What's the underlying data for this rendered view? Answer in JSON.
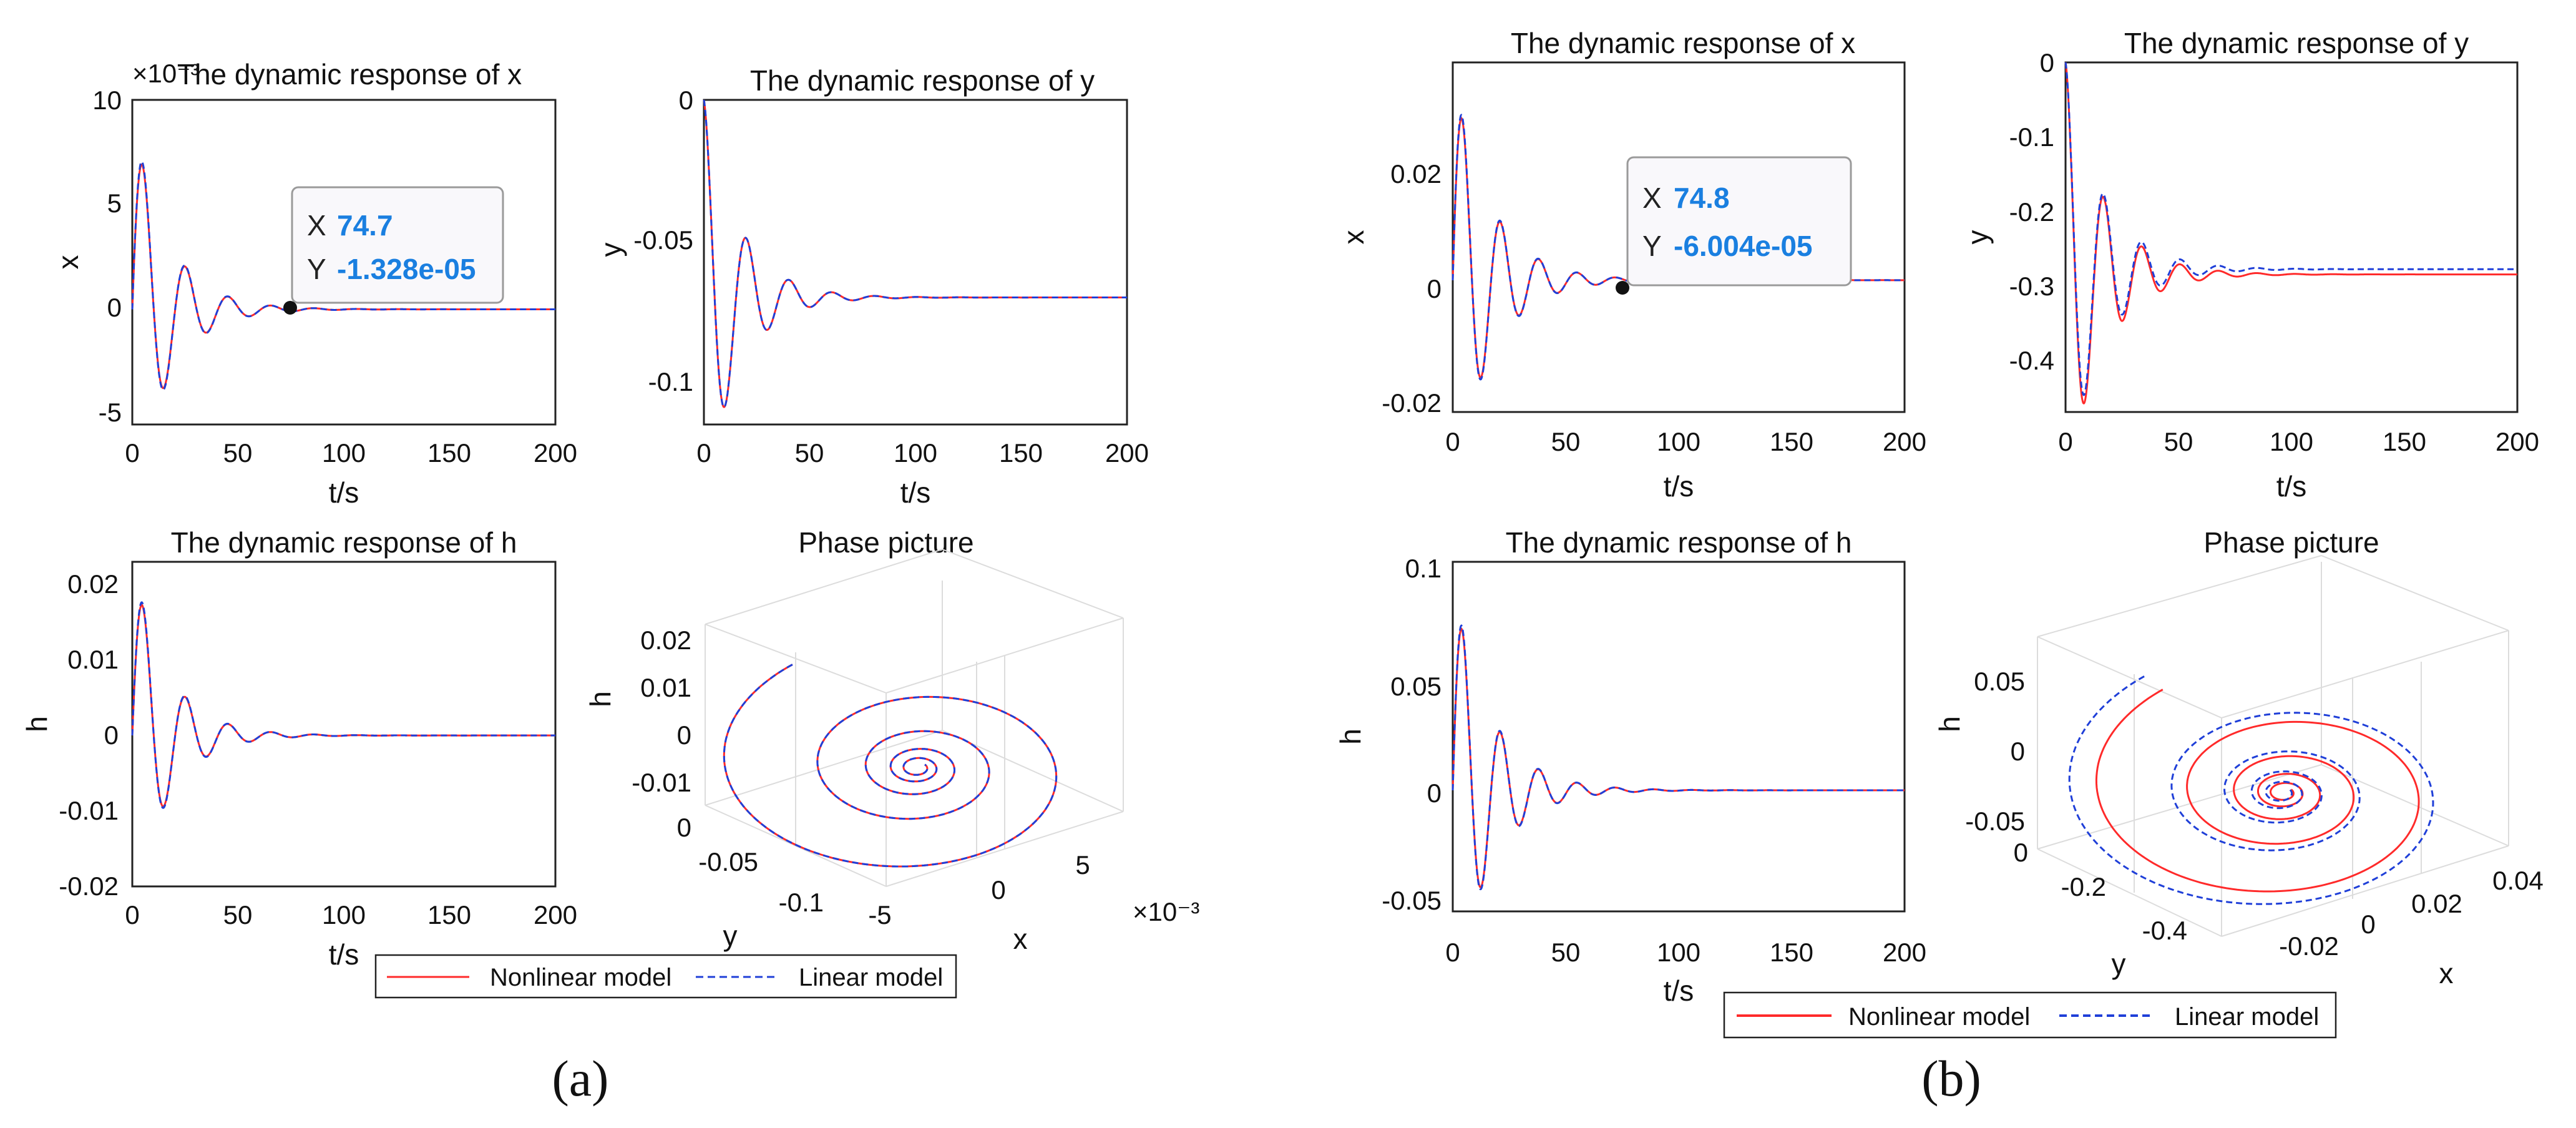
{
  "panel_labels": [
    "(a)",
    "(b)"
  ],
  "legend": {
    "entries": [
      "Nonlinear model",
      "Linear model"
    ]
  },
  "colors": {
    "nonlinear": "#ff2a2a",
    "linear": "#1f3fd8",
    "datatip_value": "#1a7fe0"
  },
  "chart_data": [
    {
      "id": "a1",
      "type": "line",
      "title": "The dynamic response of x",
      "xlabel": "t/s",
      "ylabel": "x",
      "exponent": "×10⁻³",
      "xlim": [
        0,
        200
      ],
      "ylim": [
        -5.5,
        10
      ],
      "xticks": [
        "0",
        "50",
        "100",
        "150",
        "200"
      ],
      "yticks": [
        "-5",
        "0",
        "5",
        "10"
      ],
      "response": {
        "amplitude": 9.2,
        "decay": 0.06,
        "omega": 0.31,
        "final": 0
      },
      "datatip": {
        "x_key": "X",
        "x": "74.7",
        "y_key": "Y",
        "y": "-1.328e-05"
      }
    },
    {
      "id": "a2",
      "type": "line",
      "title": "The dynamic response of y",
      "xlabel": "t/s",
      "ylabel": "y",
      "xlim": [
        0,
        200
      ],
      "ylim": [
        -0.115,
        0
      ],
      "xticks": [
        "0",
        "50",
        "100",
        "150",
        "200"
      ],
      "yticks": [
        "-0.1",
        "-0.05",
        "0"
      ],
      "response": {
        "amplitude": 0.07,
        "decay": 0.06,
        "omega": 0.31,
        "final": -0.07,
        "final_linear": -0.07
      }
    },
    {
      "id": "a3",
      "type": "line",
      "title": "The dynamic response of h",
      "xlabel": "t/s",
      "ylabel": "h",
      "xlim": [
        0,
        200
      ],
      "ylim": [
        -0.02,
        0.023
      ],
      "xticks": [
        "0",
        "50",
        "100",
        "150",
        "200"
      ],
      "yticks": [
        "-0.02",
        "-0.01",
        "0",
        "0.01",
        "0.02"
      ],
      "response": {
        "amplitude": 0.023,
        "decay": 0.06,
        "omega": 0.31,
        "final": 0
      }
    },
    {
      "id": "a4",
      "type": "line3d",
      "title": "Phase picture",
      "xlabel": "x",
      "ylabel": "y",
      "zlabel": "h",
      "exponent": "×10⁻³",
      "xticks": [
        "-5",
        "0",
        "5"
      ],
      "yticks": [
        "-0.1",
        "-0.05",
        "0"
      ],
      "zticks": [
        "-0.01",
        "0",
        "0.01",
        "0.02"
      ],
      "spiral": {
        "separation": 0.0
      }
    },
    {
      "id": "b1",
      "type": "line",
      "title": "The dynamic response of x",
      "xlabel": "t/s",
      "ylabel": "x",
      "xlim": [
        0,
        200
      ],
      "ylim": [
        -0.023,
        0.038
      ],
      "xticks": [
        "0",
        "50",
        "100",
        "150",
        "200"
      ],
      "yticks": [
        "-0.02",
        "0",
        "0.02"
      ],
      "response": {
        "amplitude": 0.036,
        "decay": 0.06,
        "omega": 0.37,
        "final": 0
      },
      "datatip": {
        "x_key": "X",
        "x": "74.8",
        "y_key": "Y",
        "y": "-6.004e-05"
      }
    },
    {
      "id": "b2",
      "type": "line",
      "title": "The dynamic response of y",
      "xlabel": "t/s",
      "ylabel": "y",
      "xlim": [
        0,
        200
      ],
      "ylim": [
        -0.47,
        0
      ],
      "xticks": [
        "0",
        "50",
        "100",
        "150",
        "200"
      ],
      "yticks": [
        "-0.4",
        "-0.3",
        "-0.2",
        "-0.1",
        "0"
      ],
      "response": {
        "amplitude": 0.28,
        "decay": 0.06,
        "omega": 0.37,
        "final": -0.285,
        "final_linear": -0.278
      }
    },
    {
      "id": "b3",
      "type": "line",
      "title": "The dynamic response of h",
      "xlabel": "t/s",
      "ylabel": "h",
      "xlim": [
        0,
        200
      ],
      "ylim": [
        -0.053,
        0.1
      ],
      "xticks": [
        "0",
        "50",
        "100",
        "150",
        "200"
      ],
      "yticks": [
        "-0.05",
        "0",
        "0.05",
        "0.1"
      ],
      "response": {
        "amplitude": 0.09,
        "decay": 0.06,
        "omega": 0.37,
        "final": 0
      }
    },
    {
      "id": "b4",
      "type": "line3d",
      "title": "Phase picture",
      "xlabel": "x",
      "ylabel": "y",
      "zlabel": "h",
      "xticks": [
        "-0.02",
        "0",
        "0.02",
        "0.04"
      ],
      "yticks": [
        "-0.4",
        "-0.2",
        "0"
      ],
      "zticks": [
        "-0.05",
        "0",
        "0.05"
      ],
      "spiral": {
        "separation": 0.08
      }
    }
  ]
}
